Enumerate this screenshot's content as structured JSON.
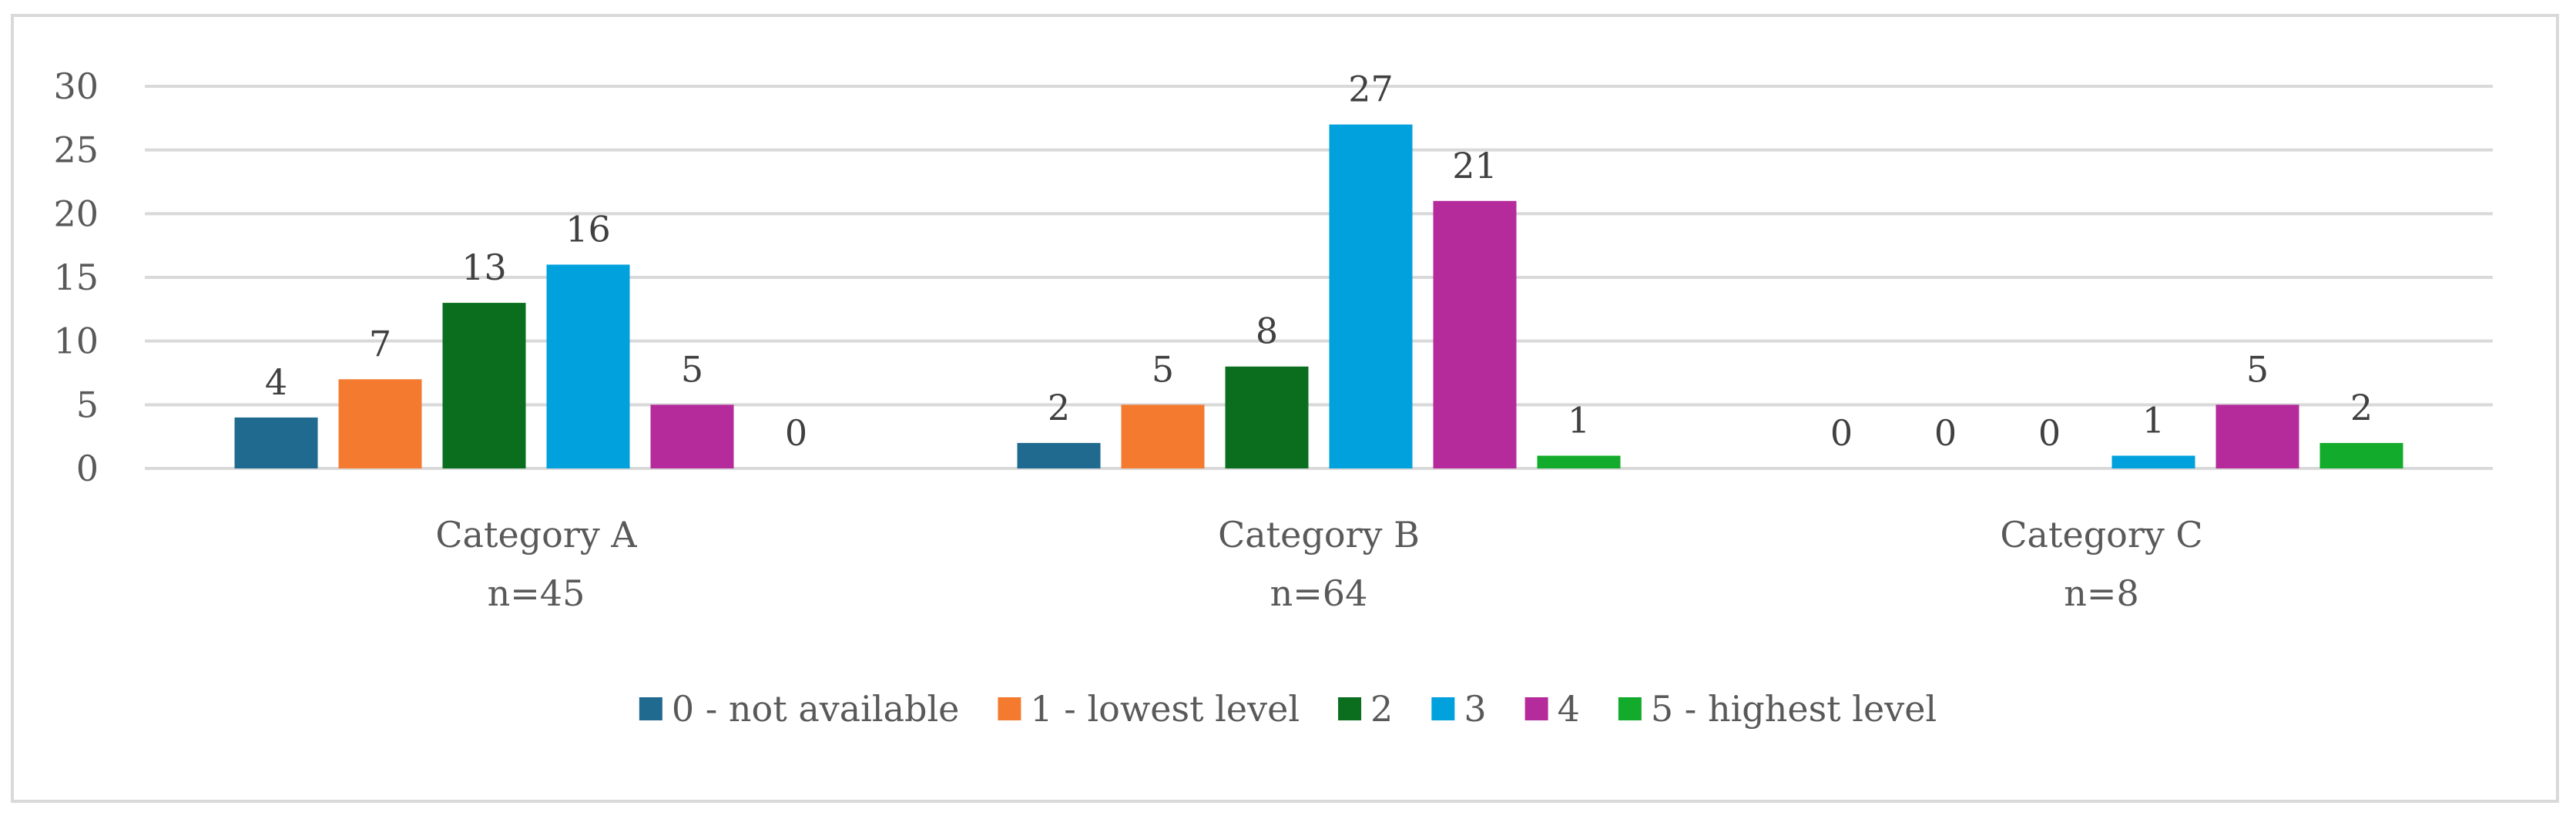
{
  "chart_data": {
    "type": "bar",
    "title": "",
    "xlabel": "",
    "ylabel": "",
    "ylim": [
      0,
      30
    ],
    "yticks": [
      0,
      5,
      10,
      15,
      20,
      25,
      30
    ],
    "grid": true,
    "legend_position": "bottom",
    "categories": [
      {
        "label": "Category A",
        "sublabel": "n=45"
      },
      {
        "label": "Category B",
        "sublabel": "n=64"
      },
      {
        "label": "Category C",
        "sublabel": "n=8"
      }
    ],
    "series": [
      {
        "name": "0 - not available",
        "color": "#1f6a8e",
        "values": [
          4,
          2,
          0
        ]
      },
      {
        "name": "1 - lowest level",
        "color": "#f47a30",
        "values": [
          7,
          5,
          0
        ]
      },
      {
        "name": "2",
        "color": "#0a6e1e",
        "values": [
          13,
          8,
          0
        ]
      },
      {
        "name": "3",
        "color": "#00a1dd",
        "values": [
          16,
          27,
          1
        ]
      },
      {
        "name": "4",
        "color": "#b52b9c",
        "values": [
          5,
          21,
          5
        ]
      },
      {
        "name": "5 - highest level",
        "color": "#12ab2b",
        "values": [
          0,
          1,
          2
        ]
      }
    ]
  }
}
